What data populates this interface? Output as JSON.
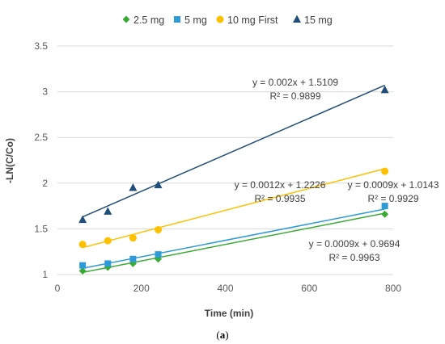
{
  "chart_data": {
    "type": "scatter",
    "title": "",
    "xlabel": "Time (min)",
    "ylabel": "-LN(C/Co)",
    "xlim": [
      0,
      800
    ],
    "ylim": [
      1,
      3.5
    ],
    "xticks": [
      0,
      200,
      400,
      600,
      800
    ],
    "yticks": [
      1,
      1.5,
      2,
      2.5,
      3,
      3.5
    ],
    "grid": "horizontal",
    "legend_position": "top",
    "series": [
      {
        "name": "2.5 mg",
        "marker": "diamond",
        "color": "#3AAA35",
        "x": [
          60,
          120,
          180,
          240,
          780
        ],
        "y": [
          1.04,
          1.08,
          1.12,
          1.17,
          1.66
        ],
        "trendline": {
          "slope": 0.0009,
          "intercept": 0.9694,
          "equation": "y = 0.0009x + 0.9694",
          "r2": "R² = 0.9963"
        }
      },
      {
        "name": "5 mg",
        "marker": "square",
        "color": "#2E9BD6",
        "x": [
          60,
          120,
          180,
          240,
          780
        ],
        "y": [
          1.1,
          1.12,
          1.17,
          1.22,
          1.75
        ],
        "trendline": {
          "slope": 0.0009,
          "intercept": 1.0143,
          "equation": "y = 0.0009x + 1.0143",
          "r2": "R² = 0.9929"
        }
      },
      {
        "name": "10 mg First",
        "marker": "circle",
        "color": "#FFC000",
        "x": [
          60,
          120,
          180,
          240,
          780
        ],
        "y": [
          1.33,
          1.37,
          1.4,
          1.49,
          2.13
        ],
        "trendline": {
          "slope": 0.0012,
          "intercept": 1.2226,
          "equation": "y = 0.0012x + 1.2226",
          "r2": "R² = 0.9935"
        }
      },
      {
        "name": "15 mg",
        "marker": "triangle",
        "color": "#1F4E79",
        "x": [
          60,
          120,
          180,
          240,
          780
        ],
        "y": [
          1.6,
          1.69,
          1.95,
          1.98,
          3.02
        ],
        "trendline": {
          "slope": 0.002,
          "intercept": 1.5109,
          "equation": "y = 0.002x + 1.5109",
          "r2": "R² = 0.9899"
        }
      }
    ],
    "caption": {
      "open": "(",
      "letter": "a",
      "close": ")"
    }
  }
}
